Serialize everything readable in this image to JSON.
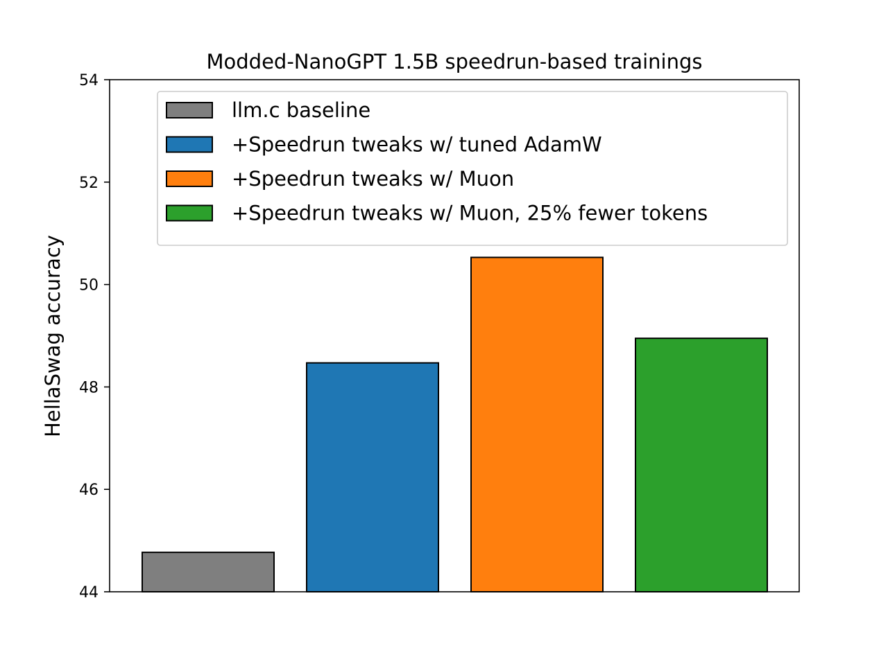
{
  "chart_data": {
    "type": "bar",
    "title": "Modded-NanoGPT 1.5B speedrun-based trainings",
    "xlabel": "",
    "ylabel": "HellaSwag accuracy",
    "ylim": [
      44,
      54
    ],
    "yticks": [
      "44",
      "46",
      "48",
      "50",
      "52",
      "54"
    ],
    "grid": false,
    "legend_position": "top",
    "bars": [
      {
        "name": "llm.c baseline",
        "value": 44.77,
        "color": "#7f7f7f"
      },
      {
        "name": "+Speedrun tweaks w/ tuned AdamW",
        "value": 48.47,
        "color": "#1f77b4"
      },
      {
        "name": "+Speedrun tweaks w/ Muon",
        "value": 50.53,
        "color": "#ff7f0e"
      },
      {
        "name": "+Speedrun tweaks w/ Muon, 25% fewer tokens",
        "value": 48.95,
        "color": "#2ca02c"
      }
    ]
  }
}
